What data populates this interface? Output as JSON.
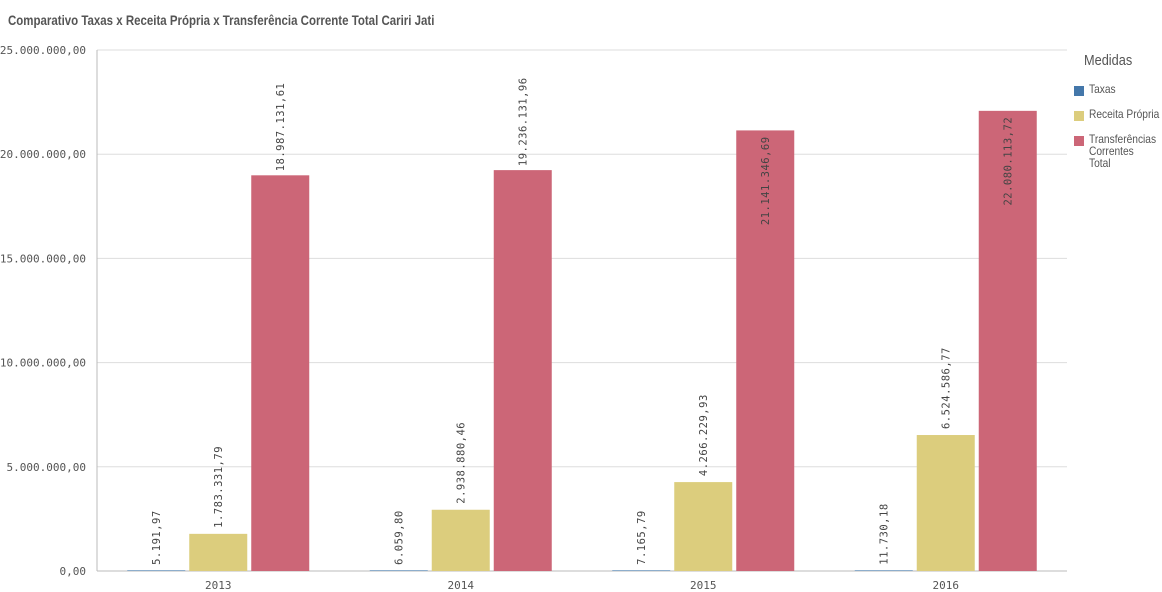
{
  "chart_data": {
    "type": "bar",
    "title": "Comparativo Taxas x Receita Própria x Transferência Corrente Total Cariri Jati",
    "categories": [
      "2013",
      "2014",
      "2015",
      "2016"
    ],
    "series": [
      {
        "name": "Taxas",
        "color": "#4477aa",
        "values": [
          5191.97,
          6059.8,
          7165.79,
          11730.18
        ],
        "labels": [
          "5.191,97",
          "6.059,80",
          "7.165,79",
          "11.730,18"
        ]
      },
      {
        "name": "Receita Própria",
        "color": "#dccd7d",
        "values": [
          1783331.79,
          2938880.46,
          4266229.93,
          6524586.77
        ],
        "labels": [
          "1.783.331,79",
          "2.938.880,46",
          "4.266.229,93",
          "6.524.586,77"
        ]
      },
      {
        "name": "Transferências Correntes Total",
        "color": "#cc6677",
        "values": [
          18987131.61,
          19236131.96,
          21141346.69,
          22080113.72
        ],
        "labels": [
          "18.987.131,61",
          "19.236.131,96",
          "21.141.346,69",
          "22.080.113,72"
        ]
      }
    ],
    "ylim": [
      0,
      25000000
    ],
    "yticks": [
      0,
      5000000,
      10000000,
      15000000,
      20000000,
      25000000
    ],
    "ytick_labels": [
      "0,00",
      "5.000.000,00",
      "10.000.000,00",
      "15.000.000,00",
      "20.000.000,00",
      "25.000.000,00"
    ],
    "grid": true,
    "legend": {
      "title": "Medidas",
      "position": "right"
    }
  }
}
